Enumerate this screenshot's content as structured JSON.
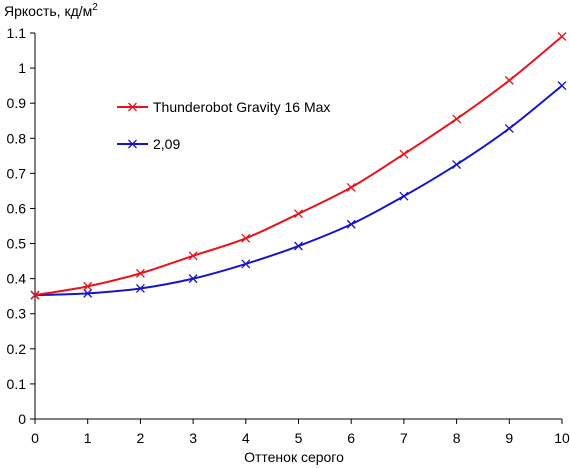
{
  "chart_data": {
    "type": "line",
    "ylabel": "Яркость, кд/м",
    "ylabel_sup": "2",
    "xlabel": "Оттенок серого",
    "xlim": [
      0,
      10
    ],
    "ylim": [
      0,
      1.1
    ],
    "x_ticks": [
      "0",
      "1",
      "2",
      "3",
      "4",
      "5",
      "6",
      "7",
      "8",
      "9",
      "10"
    ],
    "y_ticks": [
      "0",
      "0.1",
      "0.2",
      "0.3",
      "0.4",
      "0.5",
      "0.6",
      "0.7",
      "0.8",
      "0.9",
      "1",
      "1.1"
    ],
    "grid": false,
    "legend_position": "upper-left",
    "x": [
      0,
      1,
      2,
      3,
      4,
      5,
      6,
      7,
      8,
      9,
      10
    ],
    "series": [
      {
        "name": "Thunderobot Gravity 16 Max",
        "color": "#e8131b",
        "marker": "x",
        "values": [
          0.353,
          0.378,
          0.415,
          0.465,
          0.515,
          0.585,
          0.66,
          0.755,
          0.855,
          0.965,
          1.09
        ]
      },
      {
        "name": "2,09",
        "color": "#1616c8",
        "marker": "x",
        "values": [
          0.353,
          0.358,
          0.372,
          0.4,
          0.442,
          0.493,
          0.555,
          0.635,
          0.725,
          0.828,
          0.95
        ]
      }
    ]
  }
}
